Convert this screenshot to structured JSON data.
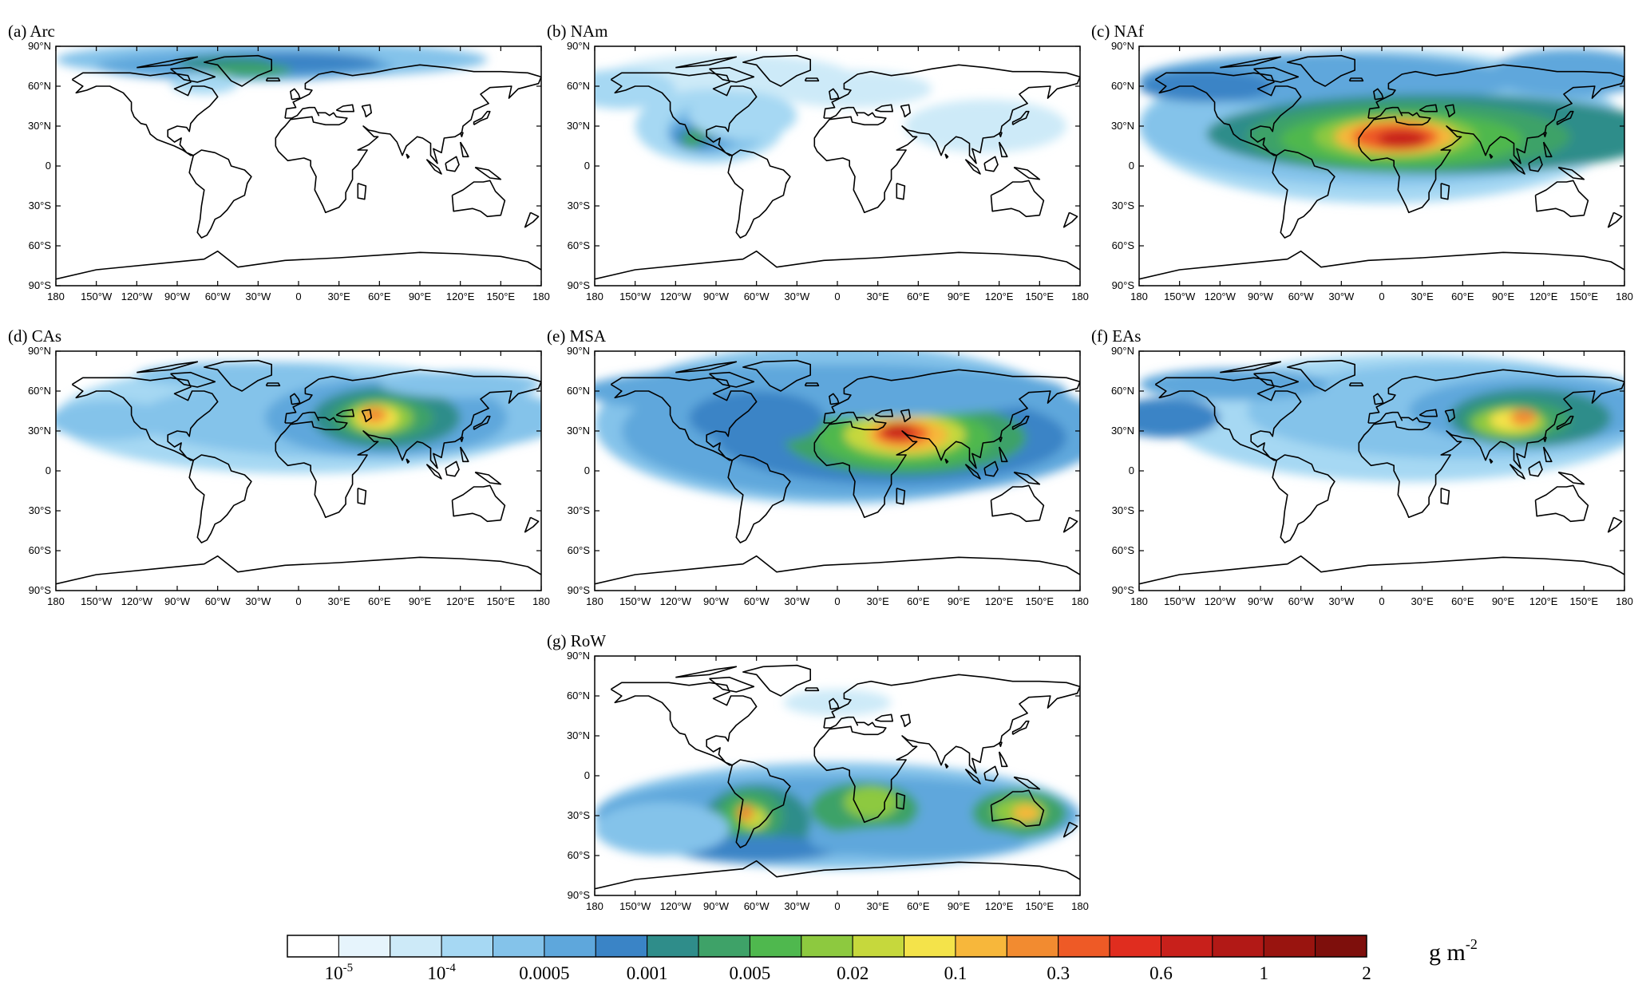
{
  "figure": {
    "panels": [
      {
        "id": "a",
        "title": "(a) Arc",
        "source": "arc"
      },
      {
        "id": "b",
        "title": "(b) NAm",
        "source": "nam"
      },
      {
        "id": "c",
        "title": "(c) NAf",
        "source": "naf"
      },
      {
        "id": "d",
        "title": "(d) CAs",
        "source": "cas"
      },
      {
        "id": "e",
        "title": "(e) MSA",
        "source": "msa"
      },
      {
        "id": "f",
        "title": "(f) EAs",
        "source": "eas"
      },
      {
        "id": "g",
        "title": "(g) RoW",
        "source": "row"
      }
    ],
    "lat_ticks": [
      "90°N",
      "60°N",
      "30°N",
      "0",
      "30°S",
      "60°S",
      "90°S"
    ],
    "lon_ticks": [
      "180",
      "150°W",
      "120°W",
      "90°W",
      "60°W",
      "30°W",
      "0",
      "30°E",
      "60°E",
      "90°E",
      "120°E",
      "150°E",
      "180"
    ],
    "colorbar": {
      "colors": [
        "#ffffff",
        "#e6f4fc",
        "#cdeaf8",
        "#a6d8f3",
        "#84c3ea",
        "#5ea7dc",
        "#3a84c6",
        "#2f8d8a",
        "#3ea268",
        "#4fb84e",
        "#8dc93f",
        "#c6d83c",
        "#f4e34a",
        "#f7b73b",
        "#f28b30",
        "#ee5a26",
        "#e02d1f",
        "#c8201b",
        "#b21916",
        "#99140f",
        "#7e0f0c"
      ],
      "labels": [
        {
          "base": "10",
          "exp": "-5"
        },
        {
          "base": "10",
          "exp": "-4"
        },
        {
          "base": "0.0005",
          "exp": ""
        },
        {
          "base": "0.001",
          "exp": ""
        },
        {
          "base": "0.005",
          "exp": ""
        },
        {
          "base": "0.02",
          "exp": ""
        },
        {
          "base": "0.1",
          "exp": ""
        },
        {
          "base": "0.3",
          "exp": ""
        },
        {
          "base": "0.6",
          "exp": ""
        },
        {
          "base": "1",
          "exp": ""
        },
        {
          "base": "2",
          "exp": ""
        }
      ],
      "unit": {
        "base": "g m",
        "exp": "-2"
      }
    }
  }
}
